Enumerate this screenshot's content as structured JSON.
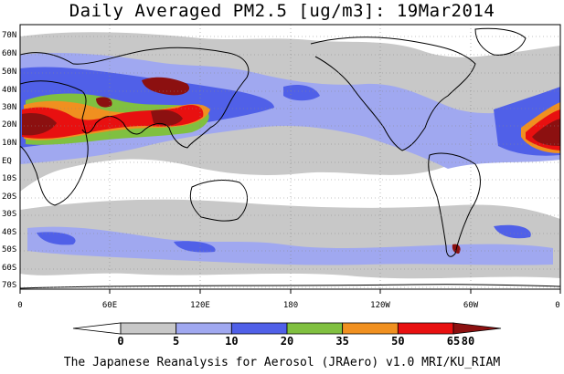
{
  "title": "Daily Averaged PM2.5 [ug/m3]: 19Mar2014",
  "footer": "The Japanese Reanalysis for Aerosol (JRAero) v1.0 MRI/KU_RIAM",
  "lat_labels": [
    "70N",
    "60N",
    "50N",
    "40N",
    "30N",
    "20N",
    "10N",
    "EQ",
    "10S",
    "20S",
    "30S",
    "40S",
    "50S",
    "60S",
    "70S"
  ],
  "lon_labels": [
    "0",
    "60E",
    "120E",
    "180",
    "120W",
    "60W",
    "0"
  ],
  "colorbar": {
    "labels": [
      "0",
      "5",
      "10",
      "20",
      "35",
      "50",
      "65",
      "80"
    ],
    "colors": [
      "#ffffff",
      "#c8c8c8",
      "#a0a8f0",
      "#5060e8",
      "#80c040",
      "#f09020",
      "#e81010",
      "#8c1010"
    ]
  }
}
